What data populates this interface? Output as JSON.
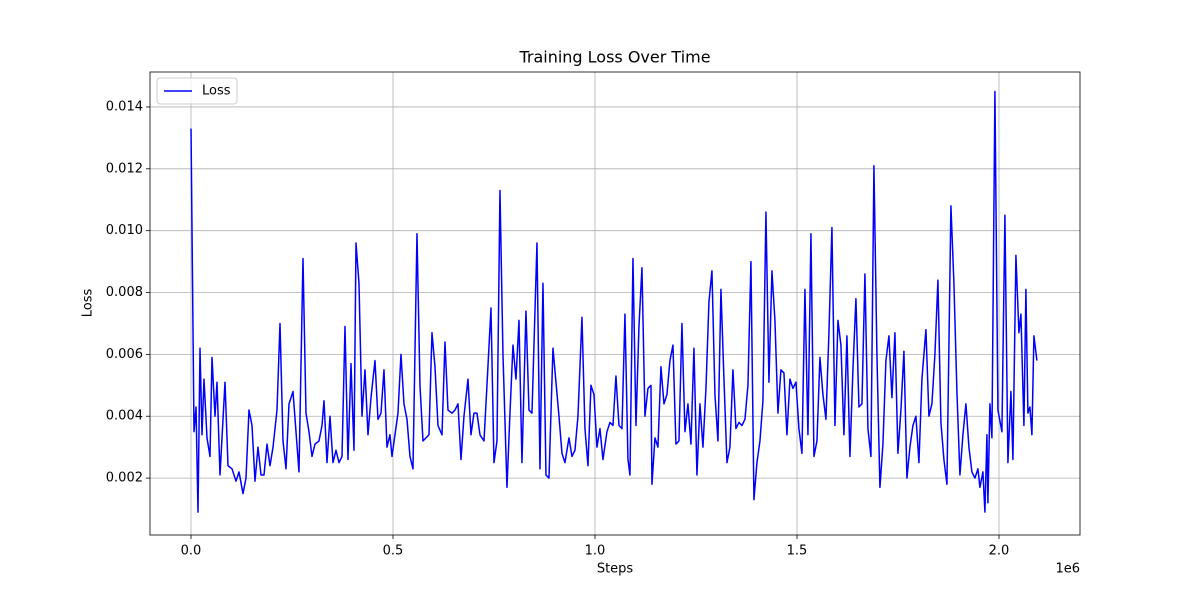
{
  "chart_data": {
    "type": "line",
    "title": "Training Loss Over Time",
    "x_label": "Steps",
    "y_label": "Loss",
    "x_offset_label": "1e6",
    "xlim": [
      -101500,
      2200500
    ],
    "ylim": [
      0.00016,
      0.01513
    ],
    "xticks": [
      {
        "value": 0,
        "label": "0.0"
      },
      {
        "value": 500000,
        "label": "0.5"
      },
      {
        "value": 1000000,
        "label": "1.0"
      },
      {
        "value": 1500000,
        "label": "1.5"
      },
      {
        "value": 2000000,
        "label": "2.0"
      }
    ],
    "yticks": [
      0.002,
      0.004,
      0.006,
      0.008,
      {
        "value": 0.01,
        "label": "0.010"
      },
      0.012,
      0.014
    ],
    "grid": true,
    "legend": "upper left",
    "x": [
      0,
      7425,
      12375,
      17325,
      22275,
      27225,
      32175,
      39600,
      47025,
      51975,
      59400,
      64350,
      71775,
      84150,
      91575,
      101475,
      111375,
      118800,
      128700,
      136125,
      143550,
      150975,
      158400,
      165825,
      173250,
      180675,
      188100,
      195525,
      202950,
      212850,
      220275,
      227700,
      235125,
      242550,
      252450,
      259875,
      267300,
      277200,
      284625,
      292050,
      299475,
      306900,
      316800,
      324225,
      329175,
      336600,
      344025,
      351450,
      358875,
      366300,
      373725,
      381150,
      388575,
      396000,
      403425,
      408375,
      415800,
      423225,
      430650,
      438075,
      445500,
      455400,
      462825,
      470250,
      477675,
      485100,
      492525,
      497475,
      504900,
      512325,
      519750,
      527175,
      534600,
      542025,
      549450,
      559350,
      566775,
      574200,
      581625,
      589050,
      596475,
      603900,
      611325,
      621225,
      628650,
      636075,
      645975,
      653400,
      660825,
      668250,
      675675,
      685575,
      693000,
      700425,
      707850,
      715275,
      725175,
      732600,
      742500,
      749925,
      757350,
      764775,
      772200,
      782100,
      789525,
      796950,
      804375,
      811800,
      819225,
      829125,
      836550,
      843975,
      856350,
      863775,
      871200,
      878625,
      886050,
      895950,
      903375,
      910800,
      918225,
      925650,
      935550,
      942975,
      950400,
      957825,
      967725,
      975150,
      982575,
      990000,
      997425,
      1004850,
      1012275,
      1019700,
      1029600,
      1037025,
      1044450,
      1051875,
      1059300,
      1066725,
      1074150,
      1081575,
      1086525,
      1093950,
      1101375,
      1108800,
      1116225,
      1123650,
      1131075,
      1138500,
      1140975,
      1148400,
      1155825,
      1163250,
      1170675,
      1178100,
      1185525,
      1192950,
      1200375,
      1207800,
      1215225,
      1222650,
      1230075,
      1237500,
      1244925,
      1252350,
      1259775,
      1267200,
      1274625,
      1282050,
      1289475,
      1296900,
      1304325,
      1311750,
      1319175,
      1326600,
      1334025,
      1341450,
      1348875,
      1356300,
      1363725,
      1371150,
      1378575,
      1386000,
      1393425,
      1400850,
      1408275,
      1415700,
      1423125,
      1430550,
      1437975,
      1445400,
      1452825,
      1460250,
      1467675,
      1475100,
      1482525,
      1489950,
      1497375,
      1504800,
      1512225,
      1519650,
      1527075,
      1534500,
      1541925,
      1549350,
      1556775,
      1564200,
      1571625,
      1579050,
      1586475,
      1593900,
      1601325,
      1608750,
      1616175,
      1623600,
      1631025,
      1638450,
      1645875,
      1653300,
      1660725,
      1668150,
      1675575,
      1683000,
      1690425,
      1697850,
      1705275,
      1712700,
      1720125,
      1727550,
      1734975,
      1742400,
      1749825,
      1757250,
      1764675,
      1772100,
      1779525,
      1786950,
      1794375,
      1801800,
      1809225,
      1819125,
      1826550,
      1833975,
      1841400,
      1848825,
      1856250,
      1863675,
      1871100,
      1881000,
      1888425,
      1895850,
      1903275,
      1910700,
      1918125,
      1925550,
      1932975,
      1940400,
      1947825,
      1952775,
      1960200,
      1965150,
      1970100,
      1972575,
      1977525,
      1982475,
      1989900,
      1997325,
      2007225,
      2014650,
      2022075,
      2029500,
      2034450,
      2041875,
      2049300,
      2054250,
      2061675,
      2066625,
      2071575,
      2076525,
      2081475,
      2086425,
      2093850
    ],
    "series": [
      {
        "name": "Loss",
        "color": "#0000ff",
        "values": [
          0.0133,
          0.0035,
          0.0043,
          0.0009,
          0.0062,
          0.0034,
          0.0052,
          0.0033,
          0.0027,
          0.0059,
          0.004,
          0.0051,
          0.0021,
          0.0051,
          0.0024,
          0.0023,
          0.0019,
          0.0022,
          0.0015,
          0.002,
          0.0042,
          0.0037,
          0.0019,
          0.003,
          0.0021,
          0.0021,
          0.0031,
          0.0024,
          0.003,
          0.0042,
          0.007,
          0.0032,
          0.0023,
          0.0044,
          0.0048,
          0.0035,
          0.0022,
          0.0091,
          0.0041,
          0.0035,
          0.0027,
          0.0031,
          0.0032,
          0.0037,
          0.0045,
          0.0025,
          0.004,
          0.0025,
          0.0029,
          0.0025,
          0.0027,
          0.0069,
          0.0026,
          0.0057,
          0.0029,
          0.0096,
          0.0083,
          0.004,
          0.0055,
          0.0034,
          0.0046,
          0.0058,
          0.0039,
          0.0041,
          0.0055,
          0.003,
          0.0034,
          0.0027,
          0.0034,
          0.0041,
          0.006,
          0.0044,
          0.0039,
          0.0027,
          0.0023,
          0.0099,
          0.005,
          0.0032,
          0.0033,
          0.0034,
          0.0067,
          0.0056,
          0.0037,
          0.0034,
          0.0064,
          0.0042,
          0.0041,
          0.0042,
          0.0044,
          0.0026,
          0.004,
          0.0052,
          0.0034,
          0.0041,
          0.0041,
          0.0034,
          0.0032,
          0.005,
          0.0075,
          0.0025,
          0.0032,
          0.0113,
          0.006,
          0.0017,
          0.0041,
          0.0063,
          0.0052,
          0.0071,
          0.0025,
          0.0074,
          0.0042,
          0.0041,
          0.0096,
          0.0023,
          0.0083,
          0.0021,
          0.002,
          0.0062,
          0.0051,
          0.004,
          0.0028,
          0.0025,
          0.0033,
          0.0027,
          0.0029,
          0.004,
          0.0072,
          0.0036,
          0.0024,
          0.005,
          0.0047,
          0.003,
          0.0036,
          0.0026,
          0.0035,
          0.0038,
          0.0037,
          0.0053,
          0.0037,
          0.0036,
          0.0073,
          0.0026,
          0.0021,
          0.0091,
          0.0037,
          0.0069,
          0.0088,
          0.004,
          0.0049,
          0.005,
          0.0018,
          0.0033,
          0.003,
          0.0056,
          0.0044,
          0.0047,
          0.0058,
          0.0063,
          0.0031,
          0.0032,
          0.007,
          0.0035,
          0.0044,
          0.0031,
          0.0062,
          0.0021,
          0.0044,
          0.003,
          0.0049,
          0.0077,
          0.0087,
          0.0047,
          0.0032,
          0.0081,
          0.0052,
          0.0025,
          0.003,
          0.0055,
          0.0036,
          0.0038,
          0.0037,
          0.0039,
          0.005,
          0.009,
          0.0013,
          0.0025,
          0.0032,
          0.0045,
          0.0106,
          0.0051,
          0.0087,
          0.0071,
          0.0041,
          0.0055,
          0.0054,
          0.0034,
          0.0052,
          0.0049,
          0.0051,
          0.0036,
          0.0028,
          0.0081,
          0.0034,
          0.0099,
          0.0027,
          0.0032,
          0.0059,
          0.0047,
          0.0039,
          0.0067,
          0.0101,
          0.0037,
          0.0071,
          0.0063,
          0.0034,
          0.0066,
          0.0027,
          0.0055,
          0.0078,
          0.0043,
          0.0044,
          0.0086,
          0.0036,
          0.0027,
          0.0121,
          0.006,
          0.0017,
          0.0031,
          0.0058,
          0.0066,
          0.0046,
          0.0067,
          0.0028,
          0.0042,
          0.0061,
          0.002,
          0.003,
          0.0037,
          0.004,
          0.0025,
          0.0052,
          0.0068,
          0.004,
          0.0044,
          0.006,
          0.0084,
          0.0038,
          0.0026,
          0.0018,
          0.0108,
          0.0083,
          0.0048,
          0.0021,
          0.0034,
          0.0044,
          0.003,
          0.0022,
          0.002,
          0.0023,
          0.0017,
          0.0022,
          0.0009,
          0.0034,
          0.0012,
          0.0044,
          0.0033,
          0.0145,
          0.0042,
          0.0035,
          0.0105,
          0.0025,
          0.0048,
          0.0026,
          0.0092,
          0.0067,
          0.0073,
          0.0037,
          0.0081,
          0.0041,
          0.0043,
          0.0034,
          0.0066,
          0.0058
        ]
      }
    ]
  }
}
